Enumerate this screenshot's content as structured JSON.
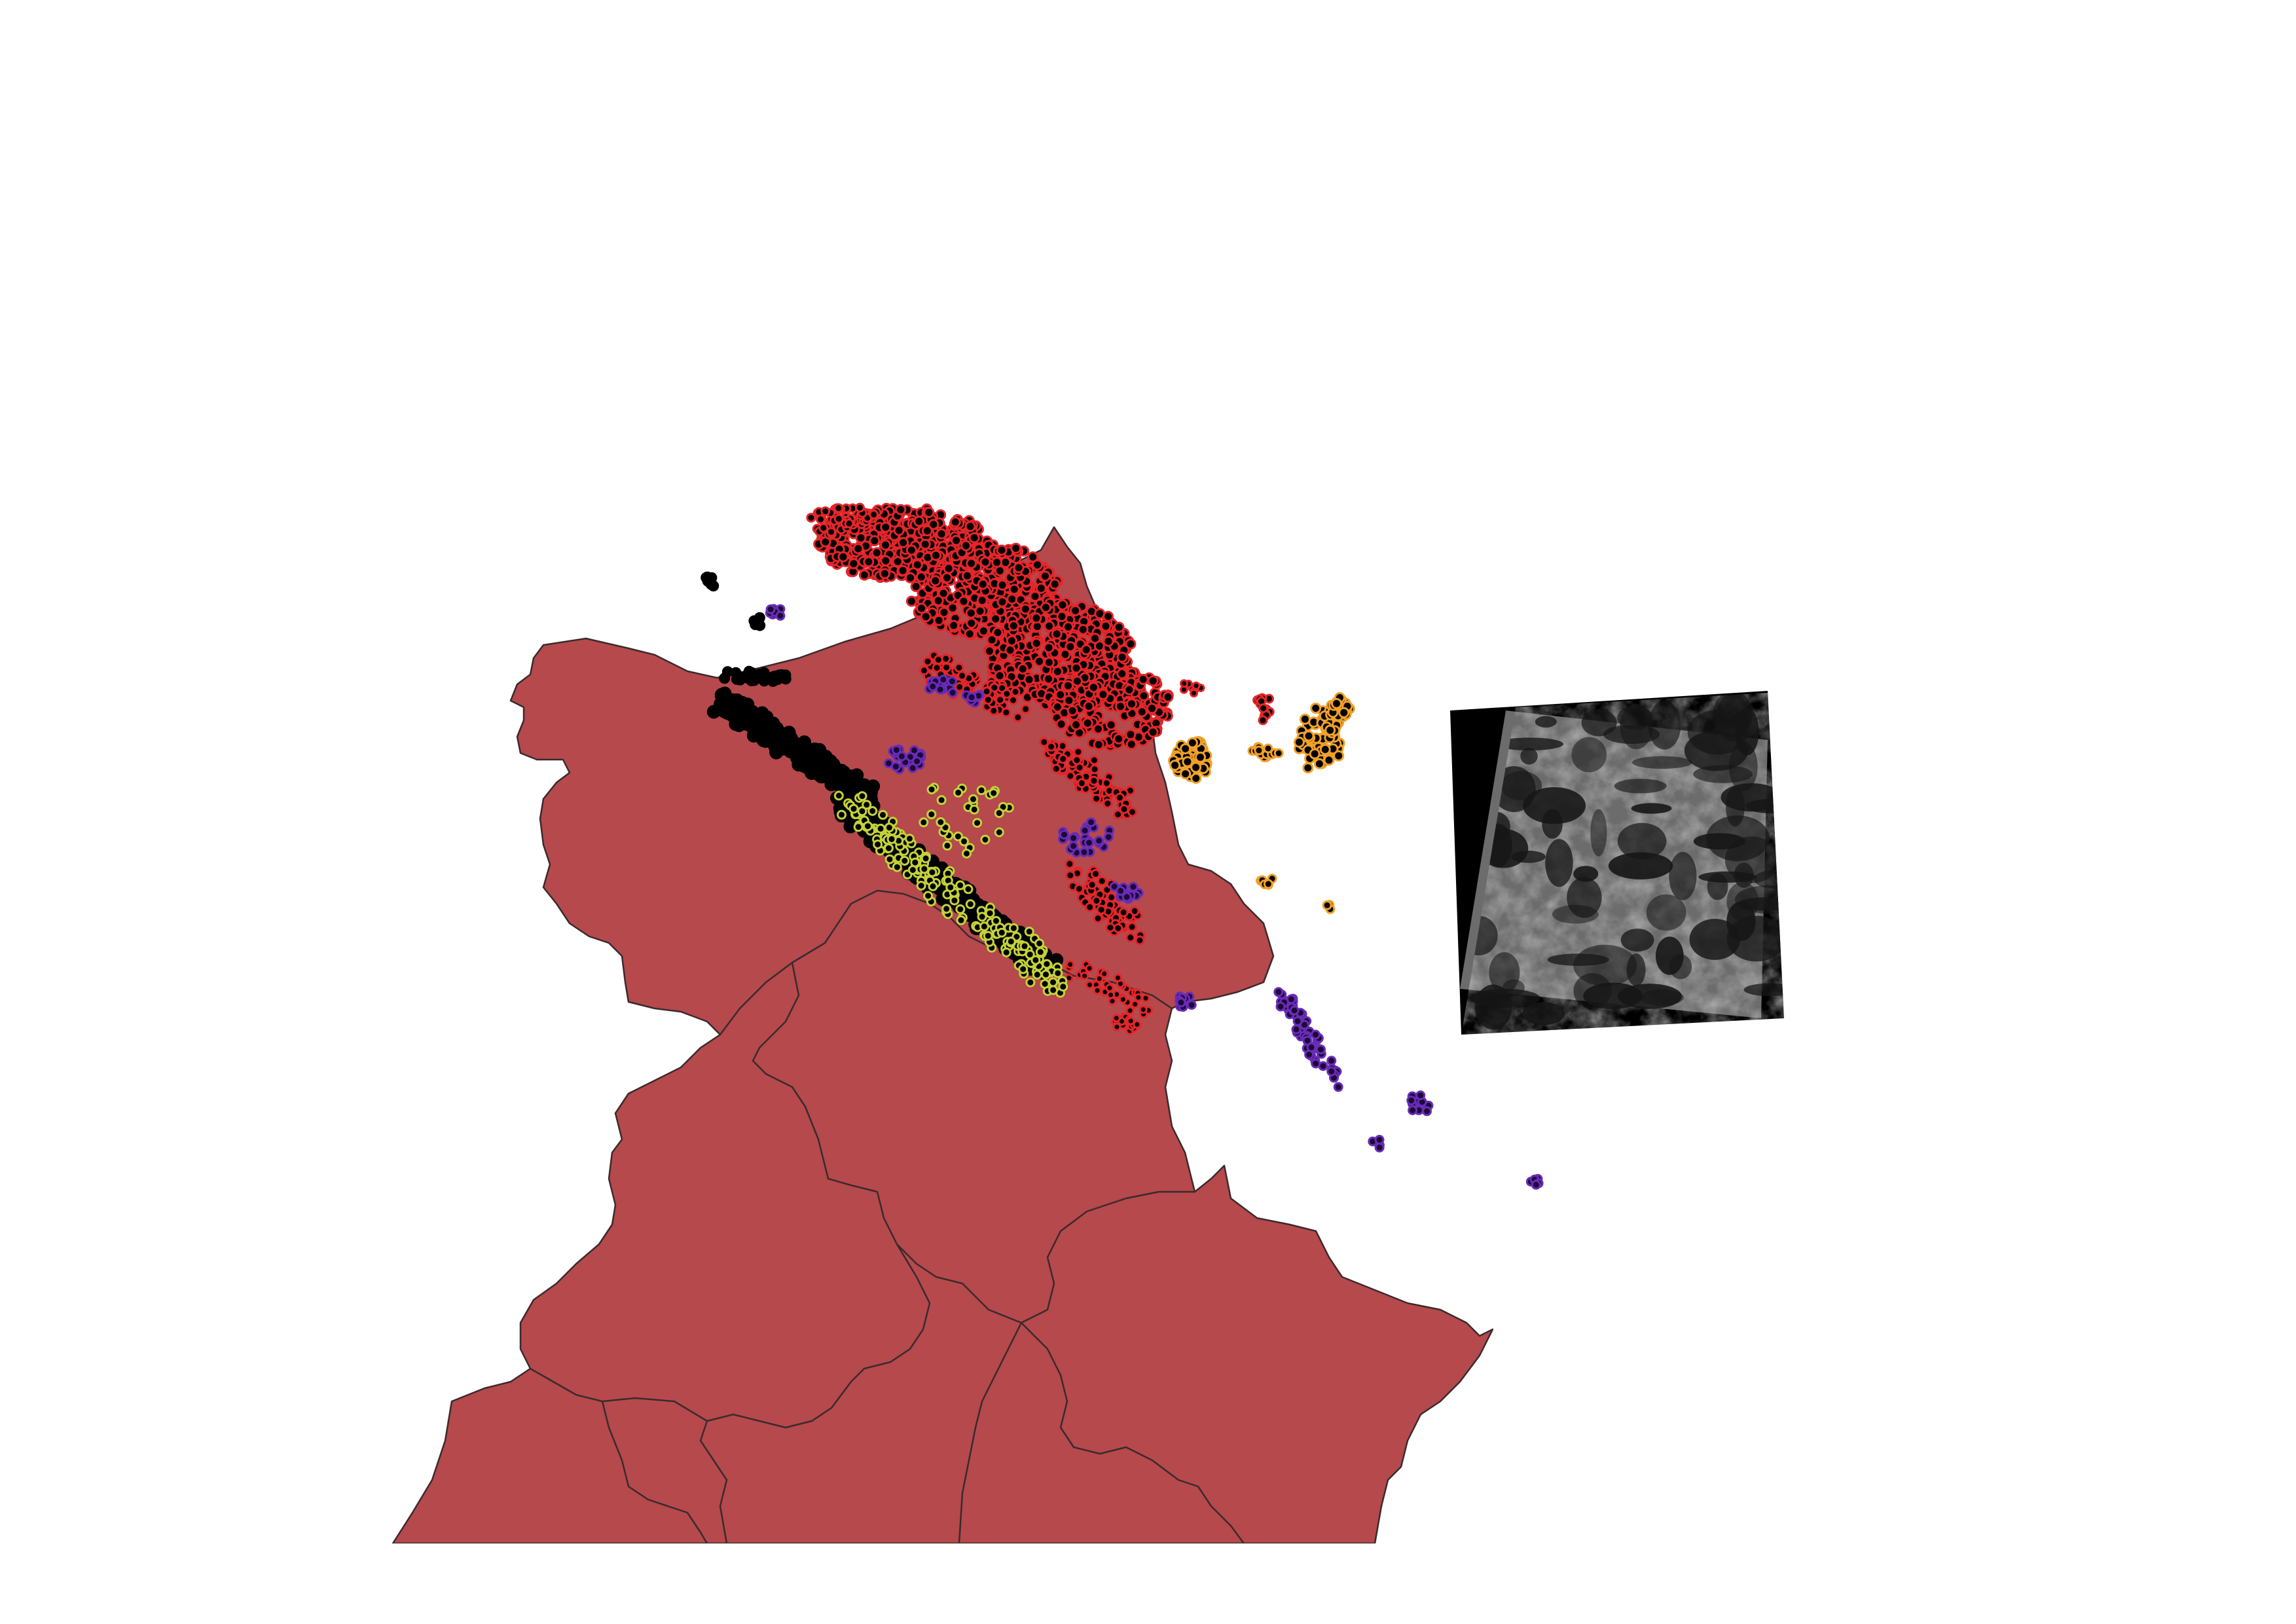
{
  "map": {
    "background": "#ffffff",
    "land_color": "#b5494c",
    "border_color": "#3a2a2c",
    "raster_frame_color": "#000000",
    "raster_image_color": "#7d7d7d",
    "layers": [
      {
        "id": "land-regions",
        "type": "polygon"
      },
      {
        "id": "point-cluster-red-outline",
        "marker_fill": "#000000",
        "marker_outline": "#e3262a"
      },
      {
        "id": "point-cluster-yellow-outline",
        "marker_fill": "#000000",
        "marker_outline": "#c4d23a"
      },
      {
        "id": "point-cluster-purple-outline",
        "marker_fill": "#1a0a35",
        "marker_outline": "#6a2bb8"
      },
      {
        "id": "point-cluster-orange-outline",
        "marker_fill": "#000000",
        "marker_outline": "#f0a02a"
      },
      {
        "id": "point-cluster-black",
        "marker_fill": "#000000",
        "marker_outline": "#000000"
      },
      {
        "id": "satellite-raster-tile",
        "type": "raster"
      }
    ]
  }
}
